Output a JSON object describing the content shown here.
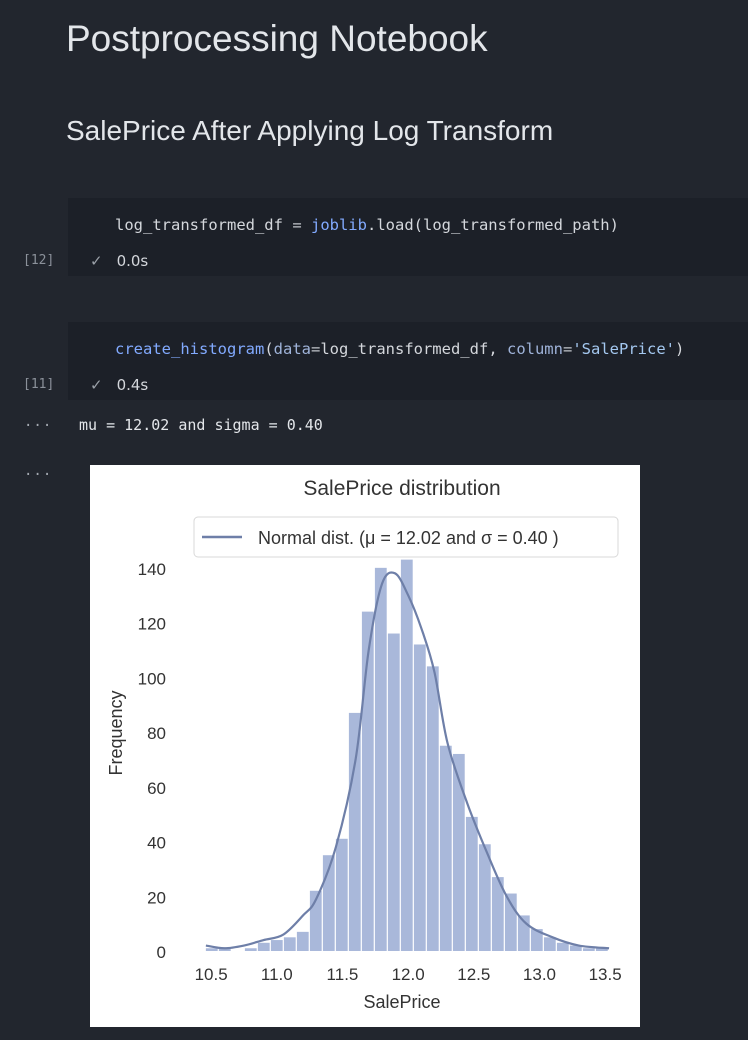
{
  "notebook": {
    "title": "Postprocessing Notebook",
    "subtitle": "SalePrice After Applying Log Transform"
  },
  "cells": [
    {
      "count": "[12]",
      "code": {
        "var": "log_transformed_df",
        "eq": " = ",
        "module": "joblib",
        "dot": ".",
        "func": "load",
        "args": "(log_transformed_path)"
      },
      "status": "0.0s"
    },
    {
      "count": "[11]",
      "code": {
        "func": "create_histogram",
        "open": "(",
        "kw1": "data",
        "eq1": "=",
        "val1": "log_transformed_df",
        "sep": ", ",
        "kw2": "column",
        "eq2": "=",
        "val2": "'SalePrice'",
        "close": ")"
      },
      "status": "0.4s"
    }
  ],
  "output": {
    "ellipsis": "···",
    "text": "mu = 12.02 and sigma = 0.40"
  },
  "chart_data": {
    "type": "bar",
    "title": "SalePrice distribution",
    "xlabel": "SalePrice",
    "ylabel": "Frequency",
    "legend": "Normal dist. ($\\mu=$ 12.02 and $\\sigma=$ 0.40 )",
    "legend_display": "Normal dist. (μ =  12.02 and σ =  0.40 )",
    "legend_position": "top",
    "xlim": [
      10.4,
      13.56
    ],
    "ylim": [
      0,
      152
    ],
    "xticks": [
      "10.5",
      "11.0",
      "11.5",
      "12.0",
      "12.5",
      "13.0",
      "13.5"
    ],
    "yticks": [
      "0",
      "20",
      "40",
      "60",
      "80",
      "100",
      "120",
      "140"
    ],
    "bin_edges": [
      10.46,
      10.559,
      10.658,
      10.757,
      10.856,
      10.955,
      11.054,
      11.153,
      11.252,
      11.351,
      11.45,
      11.549,
      11.648,
      11.747,
      11.846,
      11.945,
      12.044,
      12.143,
      12.242,
      12.341,
      12.44,
      12.539,
      12.638,
      12.737,
      12.836,
      12.935,
      13.034,
      13.133,
      13.232,
      13.331,
      13.43,
      13.529
    ],
    "counts": [
      1,
      1,
      0,
      1,
      3,
      4,
      5,
      7,
      22,
      35,
      41,
      87,
      124,
      140,
      116,
      143,
      112,
      104,
      75,
      72,
      49,
      39,
      27,
      21,
      13,
      8,
      5,
      3,
      2,
      1,
      1
    ],
    "kde_x": [
      10.46,
      10.6,
      10.75,
      10.9,
      11.05,
      11.2,
      11.3,
      11.45,
      11.6,
      11.7,
      11.8,
      11.9,
      12.0,
      12.1,
      12.2,
      12.3,
      12.45,
      12.6,
      12.75,
      12.9,
      13.1,
      13.3,
      13.53
    ],
    "kde_y": [
      2,
      1,
      2,
      4,
      6,
      13,
      19,
      38,
      70,
      110,
      134,
      138,
      130,
      118,
      102,
      76,
      54,
      36,
      20,
      10,
      5,
      2,
      1
    ],
    "bar_color": "#a9b8da",
    "line_color": "#6e7fa8"
  }
}
